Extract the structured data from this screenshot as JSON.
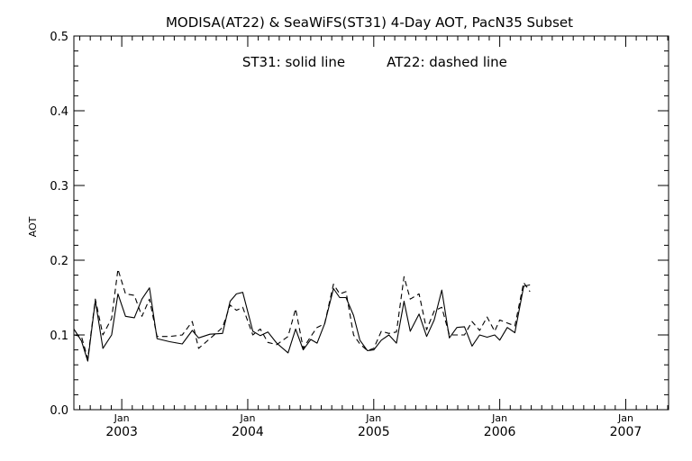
{
  "chart_data": {
    "type": "line",
    "title": "MODISA(AT22) & SeaWiFS(ST31) 4-Day AOT, PacN35 Subset",
    "annotation_left": "ST31: solid line",
    "annotation_right": "AT22: dashed line",
    "xlabel": "",
    "ylabel": "AOT",
    "ylim": [
      0.0,
      0.5
    ],
    "xlim": [
      2002.62,
      2007.34
    ],
    "yticks": [
      "0.0",
      "0.1",
      "0.2",
      "0.3",
      "0.4",
      "0.5"
    ],
    "xticks": [
      {
        "month": "Jan",
        "year": "2003",
        "x": 2003.0
      },
      {
        "month": "Jan",
        "year": "2004",
        "x": 2004.0
      },
      {
        "month": "Jan",
        "year": "2005",
        "x": 2005.0
      },
      {
        "month": "Jan",
        "year": "2006",
        "x": 2006.0
      },
      {
        "month": "Jan",
        "year": "2007",
        "x": 2007.0
      }
    ],
    "grid": false,
    "legend": "none",
    "series": [
      {
        "name": "ST31",
        "style": "solid",
        "points": [
          [
            2002.62,
            0.108
          ],
          [
            2002.68,
            0.092
          ],
          [
            2002.73,
            0.065
          ],
          [
            2002.79,
            0.146
          ],
          [
            2002.85,
            0.082
          ],
          [
            2002.92,
            0.1
          ],
          [
            2002.97,
            0.155
          ],
          [
            2003.03,
            0.125
          ],
          [
            2003.1,
            0.123
          ],
          [
            2003.16,
            0.148
          ],
          [
            2003.22,
            0.163
          ],
          [
            2003.28,
            0.095
          ],
          [
            2003.38,
            0.091
          ],
          [
            2003.48,
            0.088
          ],
          [
            2003.56,
            0.106
          ],
          [
            2003.61,
            0.096
          ],
          [
            2003.7,
            0.101
          ],
          [
            2003.8,
            0.102
          ],
          [
            2003.86,
            0.145
          ],
          [
            2003.91,
            0.155
          ],
          [
            2003.96,
            0.157
          ],
          [
            2004.04,
            0.105
          ],
          [
            2004.1,
            0.099
          ],
          [
            2004.16,
            0.104
          ],
          [
            2004.23,
            0.089
          ],
          [
            2004.32,
            0.076
          ],
          [
            2004.38,
            0.108
          ],
          [
            2004.44,
            0.08
          ],
          [
            2004.5,
            0.094
          ],
          [
            2004.55,
            0.089
          ],
          [
            2004.61,
            0.115
          ],
          [
            2004.68,
            0.162
          ],
          [
            2004.73,
            0.15
          ],
          [
            2004.78,
            0.15
          ],
          [
            2004.84,
            0.126
          ],
          [
            2004.89,
            0.093
          ],
          [
            2004.95,
            0.079
          ],
          [
            2005.0,
            0.08
          ],
          [
            2005.06,
            0.093
          ],
          [
            2005.12,
            0.1
          ],
          [
            2005.18,
            0.089
          ],
          [
            2005.24,
            0.145
          ],
          [
            2005.29,
            0.105
          ],
          [
            2005.36,
            0.128
          ],
          [
            2005.42,
            0.098
          ],
          [
            2005.48,
            0.12
          ],
          [
            2005.54,
            0.16
          ],
          [
            2005.6,
            0.096
          ],
          [
            2005.66,
            0.11
          ],
          [
            2005.72,
            0.111
          ],
          [
            2005.78,
            0.085
          ],
          [
            2005.84,
            0.1
          ],
          [
            2005.9,
            0.097
          ],
          [
            2005.96,
            0.1
          ],
          [
            2006.0,
            0.093
          ],
          [
            2006.06,
            0.11
          ],
          [
            2006.12,
            0.103
          ],
          [
            2006.19,
            0.165
          ],
          [
            2006.24,
            0.167
          ]
        ]
      },
      {
        "name": "AT22",
        "style": "dashed",
        "points": [
          [
            2002.62,
            0.1
          ],
          [
            2002.68,
            0.098
          ],
          [
            2002.73,
            0.068
          ],
          [
            2002.79,
            0.148
          ],
          [
            2002.85,
            0.1
          ],
          [
            2002.92,
            0.122
          ],
          [
            2002.97,
            0.188
          ],
          [
            2003.03,
            0.155
          ],
          [
            2003.1,
            0.153
          ],
          [
            2003.16,
            0.125
          ],
          [
            2003.22,
            0.148
          ],
          [
            2003.28,
            0.098
          ],
          [
            2003.38,
            0.098
          ],
          [
            2003.48,
            0.1
          ],
          [
            2003.56,
            0.118
          ],
          [
            2003.61,
            0.082
          ],
          [
            2003.7,
            0.095
          ],
          [
            2003.8,
            0.11
          ],
          [
            2003.86,
            0.14
          ],
          [
            2003.91,
            0.133
          ],
          [
            2003.96,
            0.137
          ],
          [
            2004.04,
            0.1
          ],
          [
            2004.1,
            0.108
          ],
          [
            2004.16,
            0.09
          ],
          [
            2004.23,
            0.087
          ],
          [
            2004.32,
            0.098
          ],
          [
            2004.38,
            0.135
          ],
          [
            2004.44,
            0.082
          ],
          [
            2004.5,
            0.098
          ],
          [
            2004.55,
            0.11
          ],
          [
            2004.61,
            0.115
          ],
          [
            2004.68,
            0.168
          ],
          [
            2004.73,
            0.155
          ],
          [
            2004.78,
            0.158
          ],
          [
            2004.84,
            0.1
          ],
          [
            2004.89,
            0.088
          ],
          [
            2004.95,
            0.079
          ],
          [
            2005.0,
            0.082
          ],
          [
            2005.06,
            0.105
          ],
          [
            2005.12,
            0.102
          ],
          [
            2005.18,
            0.104
          ],
          [
            2005.24,
            0.178
          ],
          [
            2005.29,
            0.148
          ],
          [
            2005.36,
            0.155
          ],
          [
            2005.42,
            0.107
          ],
          [
            2005.48,
            0.132
          ],
          [
            2005.54,
            0.137
          ],
          [
            2005.6,
            0.1
          ],
          [
            2005.66,
            0.1
          ],
          [
            2005.72,
            0.1
          ],
          [
            2005.78,
            0.118
          ],
          [
            2005.84,
            0.106
          ],
          [
            2005.9,
            0.124
          ],
          [
            2005.96,
            0.105
          ],
          [
            2006.0,
            0.12
          ],
          [
            2006.06,
            0.116
          ],
          [
            2006.12,
            0.112
          ],
          [
            2006.19,
            0.17
          ],
          [
            2006.24,
            0.158
          ]
        ]
      }
    ]
  }
}
